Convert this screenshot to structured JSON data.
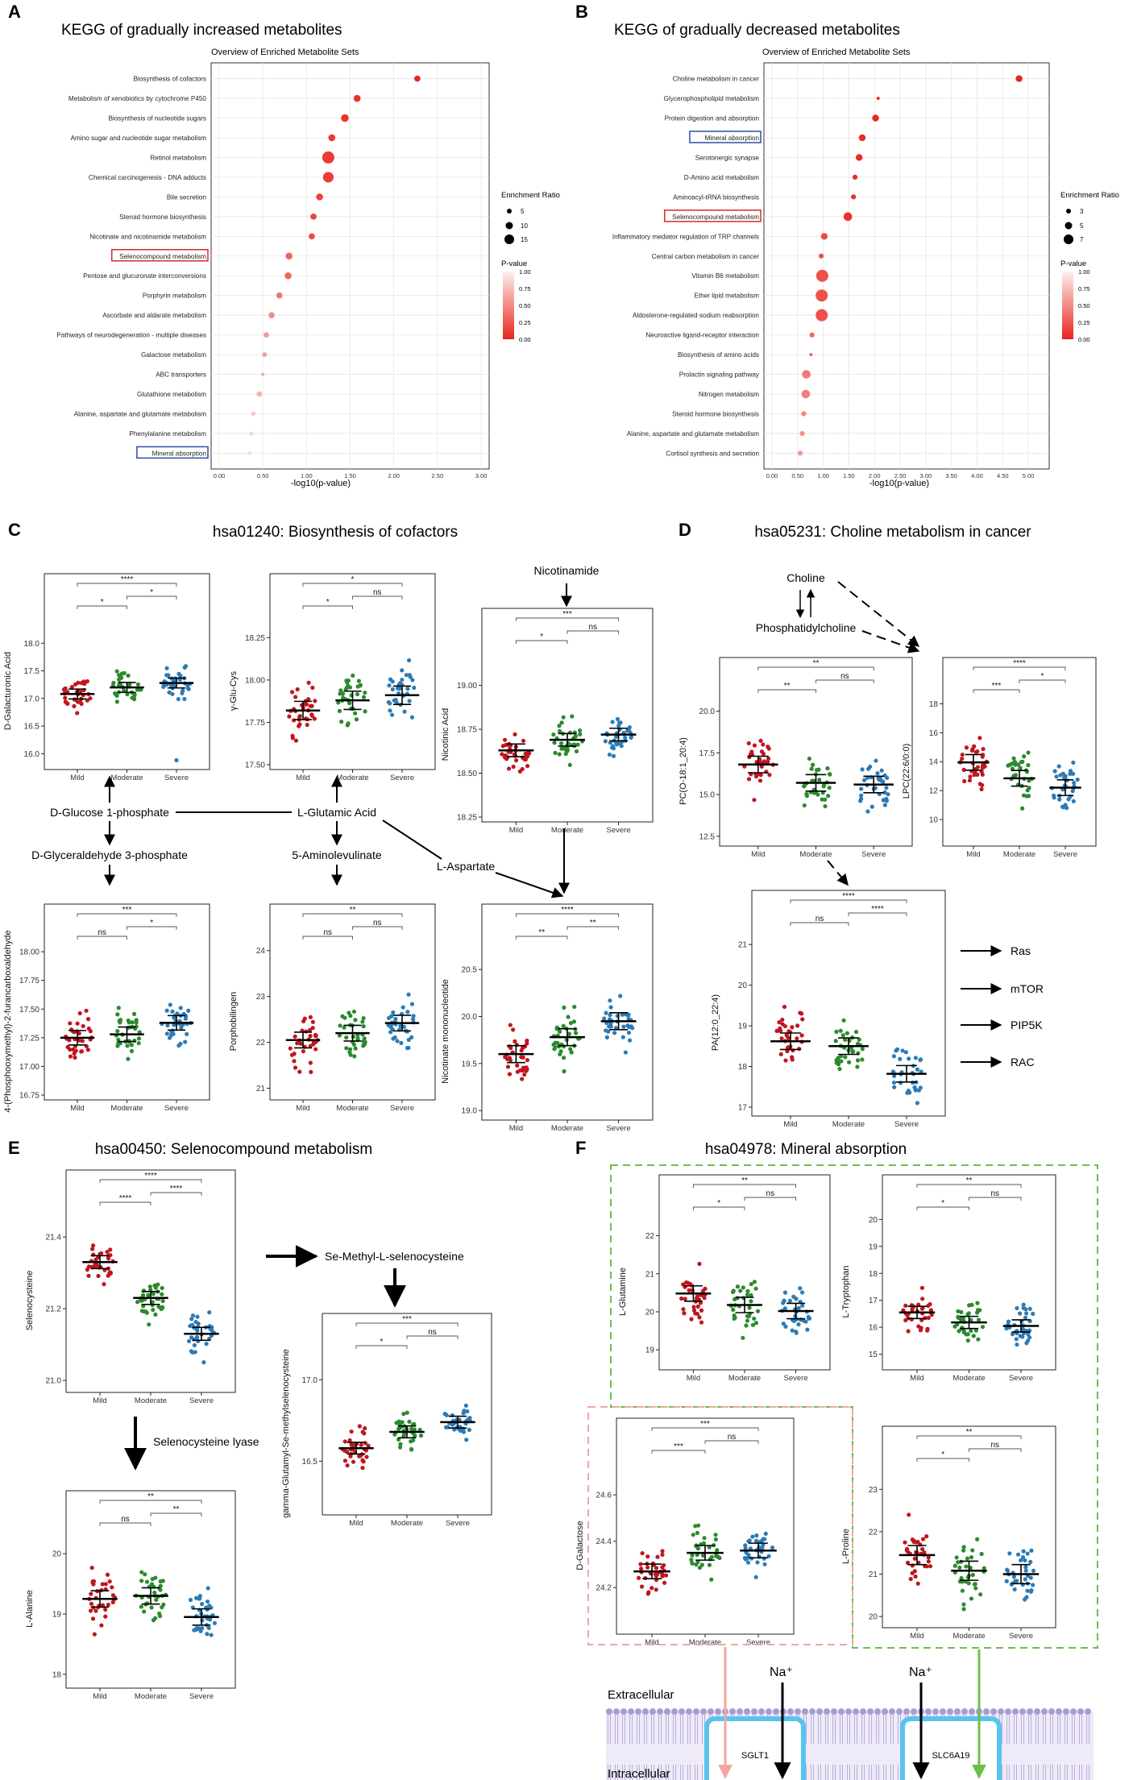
{
  "groups": [
    "Mild",
    "Moderate",
    "Severe"
  ],
  "group_colors": {
    "Mild": "#c0161f",
    "Moderate": "#2b8a2e",
    "Severe": "#2c7bb6"
  },
  "panel_letters": {
    "A": "A",
    "B": "B",
    "C": "C",
    "D": "D",
    "E": "E",
    "F": "F"
  },
  "kegg_common": {
    "subtitle": "Overview of Enriched Metabolite Sets",
    "xlabel": "-log10(p-value)",
    "size_legend_title": "Enrichment Ratio",
    "color_legend_title": "P-value",
    "color_ticks": [
      "1.00",
      "0.75",
      "0.50",
      "0.25",
      "0.00"
    ]
  },
  "panelA": {
    "title": "KEGG of gradually increased metabolites",
    "size_ticks": [
      "5",
      "10",
      "15"
    ]
  },
  "panelB": {
    "title": "KEGG of gradually decreased metabolites",
    "size_ticks": [
      "3",
      "5",
      "7"
    ]
  },
  "titles": {
    "C": "hsa01240: Biosynthesis of cofactors",
    "D": "hsa05231: Choline metabolism in cancer",
    "E": "hsa00450: Selenocompound metabolism",
    "F": "hsa04978: Mineral absorption"
  },
  "pathway_nodes": {
    "nicotinamide": "Nicotinamide",
    "glucose1p": "D-Glucose 1-phosphate",
    "glutamic": "L-Glutamic Acid",
    "g3p": "D-Glyceraldehyde 3-phosphate",
    "aminolev": "5-Aminolevulinate",
    "aspartate": "L-Aspartate",
    "choline": "Choline",
    "pc": "Phosphatidylcholine",
    "ras": "Ras",
    "mtor": "mTOR",
    "pip5k": "PIP5K",
    "rac": "RAC",
    "semethyl": "Se-Methyl-L-selenocysteine",
    "lyase": "Selenocysteine lyase",
    "extracellular": "Extracellular",
    "intracellular": "Intracellular",
    "na1": "Na⁺",
    "na2": "Na⁺",
    "sglt1": "SGLT1",
    "slc6a19": "SLC6A19"
  },
  "chart_data": [
    {
      "id": "A",
      "type": "scatter",
      "title": "KEGG of gradually increased metabolites",
      "subtitle": "Overview of Enriched Metabolite Sets",
      "xlabel": "-log10(p-value)",
      "xlim": [
        0,
        3
      ],
      "xticks": [
        "0.00",
        "0.50",
        "1.00",
        "1.50",
        "2.00",
        "2.50",
        "3.00"
      ],
      "categories": [
        "Biosynthesis of cofactors",
        "Metabolism of xenobiotics by cytochrome P450",
        "Biosynthesis of nucleotide sugars",
        "Amino sugar and nucleotide sugar metabolism",
        "Retinol metabolism",
        "Chemical carcinogenesis - DNA adducts",
        "Bile secretion",
        "Steroid hormone biosynthesis",
        "Nicotinate and nicotinamide metabolism",
        "Selenocompound metabolism",
        "Pentose and glucuronate interconversions",
        "Porphyrin metabolism",
        "Ascorbate and aldarate metabolism",
        "Pathways of neurodegeneration - multiple diseases",
        "Galactose metabolism",
        "ABC transporters",
        "Glutathione metabolism",
        "Alanine, aspartate and glutamate metabolism",
        "Phenylalanine metabolism",
        "Mineral absorption"
      ],
      "x": [
        2.27,
        1.58,
        1.44,
        1.29,
        1.25,
        1.25,
        1.15,
        1.08,
        1.06,
        0.8,
        0.79,
        0.69,
        0.6,
        0.54,
        0.52,
        0.5,
        0.46,
        0.39,
        0.37,
        0.35
      ],
      "enrichment": [
        8,
        9,
        10,
        9,
        16,
        14,
        9,
        8,
        8,
        9,
        9,
        8,
        8,
        7,
        6,
        4,
        7,
        6,
        5,
        5
      ],
      "pvalue": [
        0.005,
        0.03,
        0.04,
        0.05,
        0.06,
        0.06,
        0.07,
        0.08,
        0.09,
        0.16,
        0.16,
        0.2,
        0.25,
        0.29,
        0.3,
        0.32,
        0.35,
        0.41,
        0.43,
        0.45
      ],
      "boxed": {
        "Selenocompound metabolism": "red",
        "Mineral absorption": "blue"
      }
    },
    {
      "id": "B",
      "type": "scatter",
      "title": "KEGG of gradually decreased metabolites",
      "subtitle": "Overview of Enriched Metabolite Sets",
      "xlabel": "-log10(p-value)",
      "xlim": [
        0,
        5.25
      ],
      "xticks": [
        "0.00",
        "0.50",
        "1.00",
        "1.50",
        "2.00",
        "2.50",
        "3.00",
        "3.50",
        "4.00",
        "4.50",
        "5.00"
      ],
      "categories": [
        "Choline metabolism in cancer",
        "Glycerophospholipid metabolism",
        "Protein digestion and absorption",
        "Mineral absorption",
        "Serotonergic synapse",
        "D-Amino acid metabolism",
        "Aminoacyl-tRNA biosynthesis",
        "Selenocompound metabolism",
        "Inflammatory mediator regulation of TRP channels",
        "Central carbon metabolism in cancer",
        "Vitamin B6 metabolism",
        "Ether lipid metabolism",
        "Aldosterone-regulated sodium reabsorption",
        "Neuroactive ligand-receptor interaction",
        "Biosynthesis of amino acids",
        "Prolactin signaling pathway",
        "Nitrogen metabolism",
        "Steroid hormone biosynthesis",
        "Alanine, aspartate and glutamate metabolism",
        "Cortisol synthesis and secretion"
      ],
      "x": [
        4.82,
        2.07,
        2.02,
        1.76,
        1.7,
        1.62,
        1.59,
        1.48,
        1.02,
        0.96,
        0.98,
        0.97,
        0.97,
        0.78,
        0.76,
        0.67,
        0.66,
        0.62,
        0.59,
        0.55
      ],
      "enrichment": [
        4,
        2,
        4,
        4,
        4,
        3,
        3,
        5,
        4,
        3,
        7,
        7,
        7,
        3,
        2,
        5,
        5,
        3,
        3,
        3
      ],
      "pvalue": [
        0.0,
        0.01,
        0.01,
        0.02,
        0.02,
        0.02,
        0.03,
        0.03,
        0.1,
        0.11,
        0.11,
        0.11,
        0.11,
        0.17,
        0.17,
        0.21,
        0.22,
        0.24,
        0.26,
        0.28
      ],
      "boxed": {
        "Selenocompound metabolism": "red",
        "Mineral absorption": "blue"
      }
    },
    {
      "id": "C1",
      "type": "scatter",
      "ylabel": "D-Galacturonic Acid",
      "ylim": [
        15.8,
        18.5
      ],
      "yticks": [
        "16.0",
        "16.5",
        "17.0",
        "17.5",
        "18.0"
      ],
      "means": [
        17.08,
        17.2,
        17.28
      ],
      "spread": 0.2,
      "sig": [
        "*",
        "*",
        "****"
      ],
      "outliers": [
        [
          2,
          15.88
        ]
      ]
    },
    {
      "id": "C2",
      "type": "scatter",
      "ylabel": "γ-Glu-Cys",
      "ylim": [
        17.5,
        18.38
      ],
      "yticks": [
        "17.50",
        "17.75",
        "18.00",
        "18.25"
      ],
      "means": [
        17.82,
        17.88,
        17.91
      ],
      "spread": 0.12,
      "sig": [
        "*",
        "ns",
        "*"
      ]
    },
    {
      "id": "C3",
      "type": "scatter",
      "ylabel": "Nicotinic Acid",
      "ylim": [
        18.25,
        19.2
      ],
      "yticks": [
        "18.25",
        "18.50",
        "18.75",
        "19.00"
      ],
      "means": [
        18.63,
        18.69,
        18.72
      ],
      "spread": 0.08,
      "sig": [
        "*",
        "ns",
        "***"
      ]
    },
    {
      "id": "C4",
      "type": "scatter",
      "ylabel": "4-(Phosphooxymethyl)-2-furancarboxaldehyde",
      "ylim": [
        16.75,
        18.05
      ],
      "yticks": [
        "16.75",
        "17.00",
        "17.25",
        "17.50",
        "17.75",
        "18.00"
      ],
      "means": [
        17.25,
        17.28,
        17.38
      ],
      "spread": 0.14,
      "sig": [
        "ns",
        "*",
        "***"
      ]
    },
    {
      "id": "C5",
      "type": "scatter",
      "ylabel": "Porphobilingen",
      "ylim": [
        20.85,
        24.1
      ],
      "yticks": [
        "21",
        "22",
        "23",
        "24"
      ],
      "means": [
        22.05,
        22.2,
        22.42
      ],
      "spread": 0.38,
      "sig": [
        "ns",
        "ns",
        "**"
      ]
    },
    {
      "id": "C6",
      "type": "scatter",
      "ylabel": "Nicotinate mononucleotide",
      "ylim": [
        18.95,
        20.75
      ],
      "yticks": [
        "19.0",
        "19.5",
        "20.0",
        "20.5"
      ],
      "means": [
        19.6,
        19.78,
        19.95
      ],
      "spread": 0.2,
      "sig": [
        "**",
        "**",
        "****"
      ]
    },
    {
      "id": "D1",
      "type": "scatter",
      "ylabel": "PC(O-18:1_20:4)",
      "ylim": [
        12.2,
        20.7
      ],
      "yticks": [
        "12.5",
        "15.0",
        "17.5",
        "20.0"
      ],
      "means": [
        16.8,
        15.7,
        15.6
      ],
      "spread": 1.1,
      "sig": [
        "**",
        "ns",
        "**"
      ]
    },
    {
      "id": "D2",
      "type": "scatter",
      "ylabel": "LPC(22:6/0:0)",
      "ylim": [
        8.5,
        18.3
      ],
      "yticks": [
        "10",
        "12",
        "14",
        "16",
        "18"
      ],
      "means": [
        13.95,
        12.85,
        12.2
      ],
      "spread": 1.2,
      "sig": [
        "***",
        "*",
        "****"
      ]
    },
    {
      "id": "D3",
      "type": "scatter",
      "ylabel": "PA(12:0_22:4)",
      "ylim": [
        16.9,
        21.3
      ],
      "yticks": [
        "17",
        "18",
        "19",
        "20",
        "21"
      ],
      "means": [
        18.62,
        18.5,
        17.82
      ],
      "spread": 0.45,
      "sig": [
        "ns",
        "****",
        "****"
      ]
    },
    {
      "id": "E1",
      "type": "scatter",
      "ylabel": "Selenocysteine",
      "ylim": [
        20.98,
        21.47
      ],
      "yticks": [
        "21.0",
        "21.2",
        "21.4"
      ],
      "means": [
        21.33,
        21.23,
        21.13
      ],
      "spread": 0.04,
      "sig": [
        "****",
        "****",
        "****"
      ]
    },
    {
      "id": "E2",
      "type": "scatter",
      "ylabel": "gamma-Glutamyl-Se-methylselenocysteine",
      "ylim": [
        16.2,
        17.15
      ],
      "yticks": [
        "16.5",
        "17.0"
      ],
      "means": [
        16.58,
        16.68,
        16.74
      ],
      "spread": 0.08,
      "sig": [
        "*",
        "ns",
        "***"
      ]
    },
    {
      "id": "E3",
      "type": "scatter",
      "ylabel": "L-Alanine",
      "ylim": [
        17.85,
        20.35
      ],
      "yticks": [
        "18",
        "19",
        "20"
      ],
      "means": [
        19.25,
        19.3,
        18.95
      ],
      "spread": 0.3,
      "sig": [
        "ns",
        "**",
        "**"
      ]
    },
    {
      "id": "F1",
      "type": "scatter",
      "ylabel": "L-Glutamine",
      "ylim": [
        18.6,
        22.5
      ],
      "yticks": [
        "19",
        "20",
        "21",
        "22"
      ],
      "means": [
        20.48,
        20.18,
        20.02
      ],
      "spread": 0.45,
      "sig": [
        "*",
        "ns",
        "**"
      ]
    },
    {
      "id": "F2",
      "type": "scatter",
      "ylabel": "L-Tryptophan",
      "ylim": [
        14.6,
        20.1
      ],
      "yticks": [
        "15",
        "16",
        "17",
        "18",
        "19",
        "20"
      ],
      "means": [
        16.55,
        16.18,
        16.05
      ],
      "spread": 0.5,
      "sig": [
        "*",
        "ns",
        "**"
      ]
    },
    {
      "id": "F3",
      "type": "scatter",
      "ylabel": "D-Galactose",
      "ylim": [
        24.02,
        24.75
      ],
      "yticks": [
        "24.2",
        "24.4",
        "24.6"
      ],
      "means": [
        24.27,
        24.35,
        24.36
      ],
      "spread": 0.07,
      "sig": [
        "***",
        "ns",
        "***"
      ]
    },
    {
      "id": "F4",
      "type": "scatter",
      "ylabel": "L-Proline",
      "ylim": [
        19.85,
        23.5
      ],
      "yticks": [
        "20",
        "21",
        "22",
        "23"
      ],
      "means": [
        21.45,
        21.08,
        21.0
      ],
      "spread": 0.5,
      "sig": [
        "*",
        "ns",
        "**"
      ]
    }
  ]
}
